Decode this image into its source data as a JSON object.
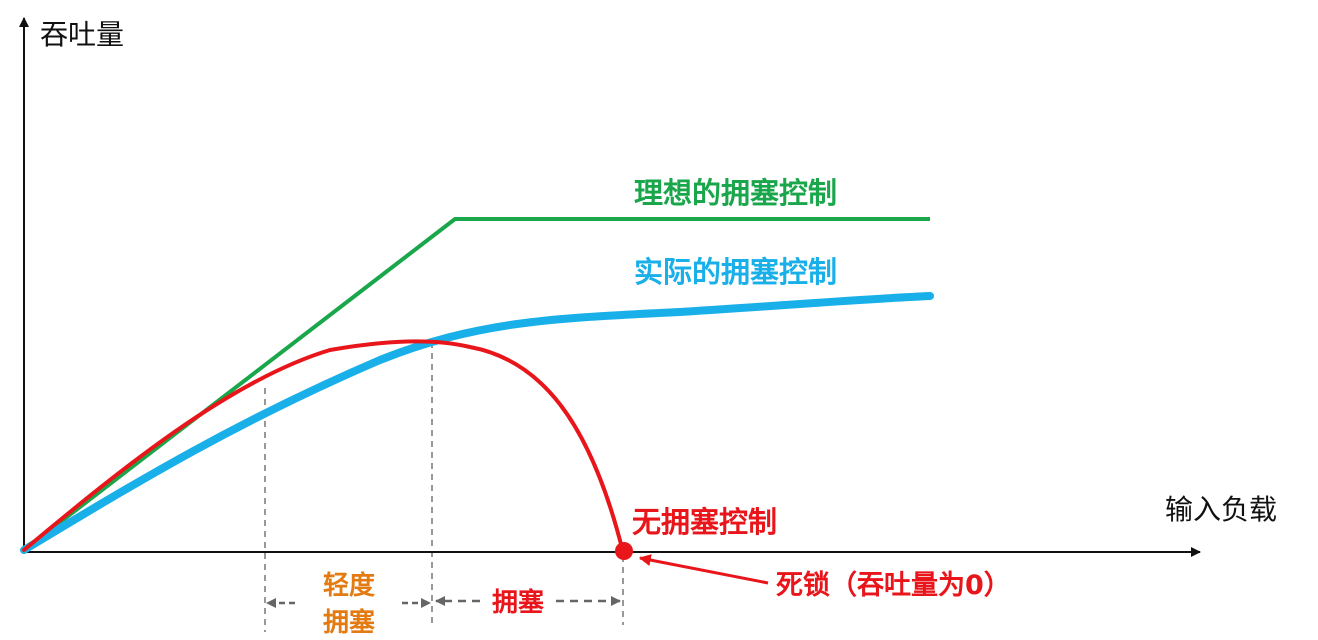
{
  "axes": {
    "y_label": "吞吐量",
    "x_label": "输入负载"
  },
  "curves": {
    "ideal": {
      "label": "理想的拥塞控制",
      "color": "#1aa64a"
    },
    "actual": {
      "label": "实际的拥塞控制",
      "color": "#19b0ea"
    },
    "none": {
      "label": "无拥塞控制",
      "color": "#e8161b"
    }
  },
  "regions": {
    "light_line1": "轻度",
    "light_line2": "拥塞",
    "light_color": "#e37b12",
    "congestion": "拥塞",
    "congestion_color": "#e8161b"
  },
  "deadlock": {
    "label": "死锁（吞吐量为0）",
    "color": "#e8161b"
  },
  "colors": {
    "axis": "#111111",
    "guide": "#777777"
  }
}
